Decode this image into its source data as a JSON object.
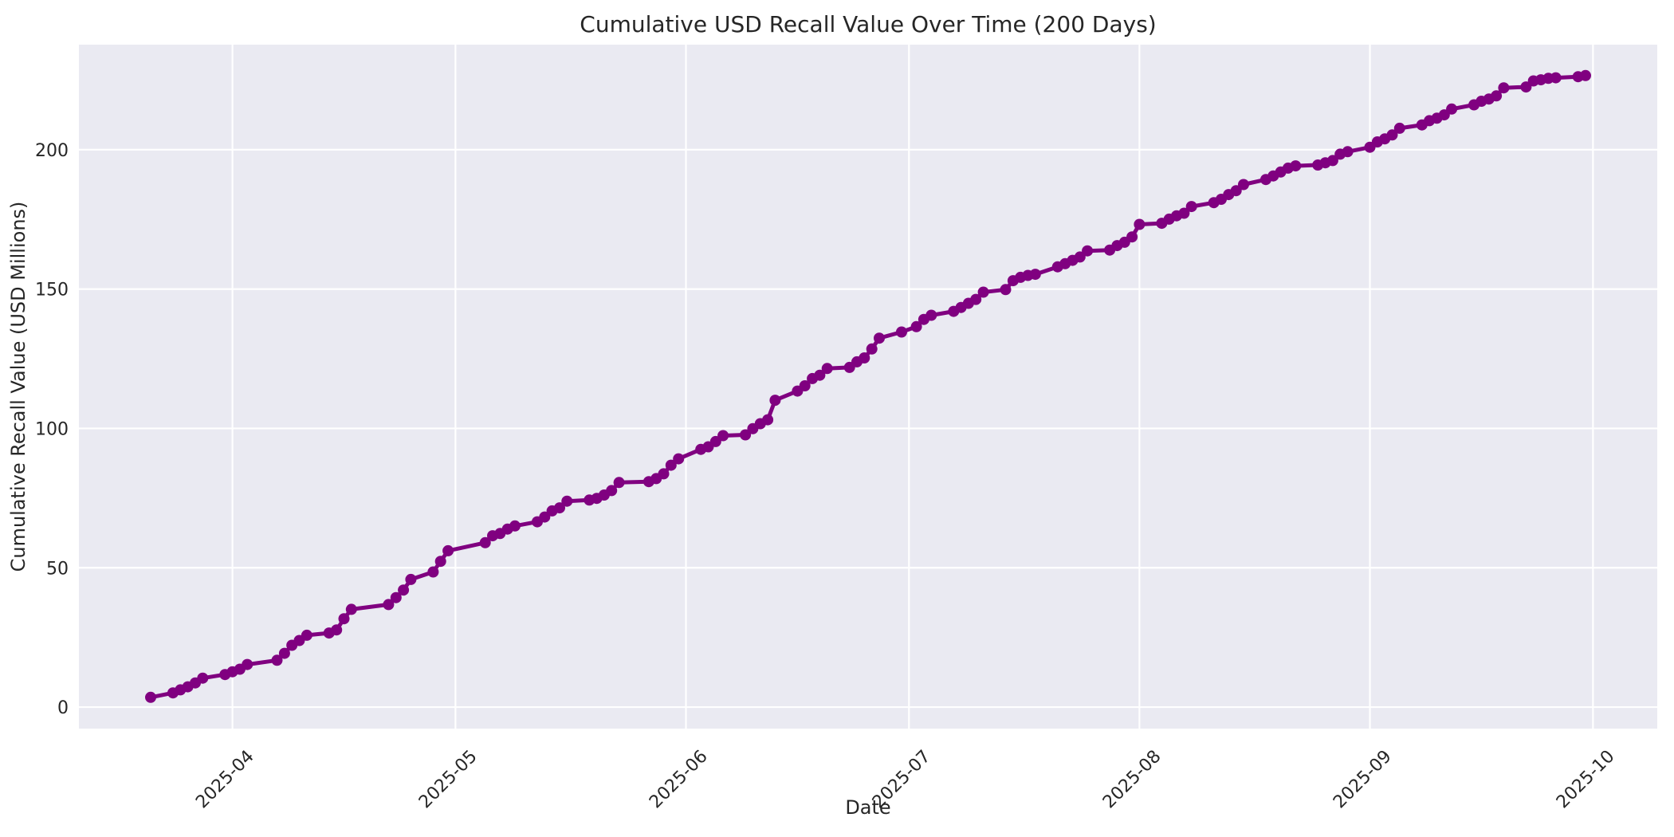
{
  "chart_data": {
    "type": "line",
    "title": "Cumulative USD Recall Value Over Time (200 Days)",
    "xlabel": "Date",
    "ylabel": "Cumulative Recall Value (USD Millions)",
    "num_days_in_title": 200,
    "legend": "none",
    "grid": true,
    "background_color": "#eaeaf2",
    "grid_color": "#ffffff",
    "line_color": "#800080",
    "marker_color": "#800080",
    "text_color": "#262626",
    "ylim": [
      -7.7,
      237.7
    ],
    "xlim": [
      "2025-03-11",
      "2025-10-10"
    ],
    "y_ticks": [
      0,
      50,
      100,
      150,
      200
    ],
    "x_ticks": [
      {
        "label": "2025-04",
        "date": "2025-04-01"
      },
      {
        "label": "2025-05",
        "date": "2025-05-01"
      },
      {
        "label": "2025-06",
        "date": "2025-06-01"
      },
      {
        "label": "2025-07",
        "date": "2025-07-01"
      },
      {
        "label": "2025-08",
        "date": "2025-08-01"
      },
      {
        "label": "2025-09",
        "date": "2025-09-01"
      },
      {
        "label": "2025-10",
        "date": "2025-10-01"
      }
    ],
    "series": [
      {
        "name": "Cumulative Recall Value",
        "points": [
          [
            "2025-03-21",
            3.5
          ],
          [
            "2025-03-24",
            5.1
          ],
          [
            "2025-03-25",
            6.2
          ],
          [
            "2025-03-26",
            7.3
          ],
          [
            "2025-03-27",
            8.7
          ],
          [
            "2025-03-28",
            10.4
          ],
          [
            "2025-03-31",
            11.7
          ],
          [
            "2025-04-01",
            12.7
          ],
          [
            "2025-04-02",
            13.6
          ],
          [
            "2025-04-03",
            15.3
          ],
          [
            "2025-04-07",
            16.8
          ],
          [
            "2025-04-08",
            19.3
          ],
          [
            "2025-04-09",
            22.2
          ],
          [
            "2025-04-10",
            23.9
          ],
          [
            "2025-04-11",
            25.8
          ],
          [
            "2025-04-14",
            26.6
          ],
          [
            "2025-04-15",
            27.7
          ],
          [
            "2025-04-16",
            31.7
          ],
          [
            "2025-04-17",
            35.1
          ],
          [
            "2025-04-22",
            36.8
          ],
          [
            "2025-04-23",
            39.3
          ],
          [
            "2025-04-24",
            42.0
          ],
          [
            "2025-04-25",
            45.8
          ],
          [
            "2025-04-28",
            48.5
          ],
          [
            "2025-04-29",
            52.3
          ],
          [
            "2025-04-30",
            56.1
          ],
          [
            "2025-05-05",
            59.0
          ],
          [
            "2025-05-06",
            61.5
          ],
          [
            "2025-05-07",
            62.3
          ],
          [
            "2025-05-08",
            63.9
          ],
          [
            "2025-05-09",
            65.0
          ],
          [
            "2025-05-12",
            66.5
          ],
          [
            "2025-05-13",
            68.2
          ],
          [
            "2025-05-14",
            70.4
          ],
          [
            "2025-05-15",
            71.5
          ],
          [
            "2025-05-16",
            73.9
          ],
          [
            "2025-05-19",
            74.3
          ],
          [
            "2025-05-20",
            74.9
          ],
          [
            "2025-05-21",
            76.1
          ],
          [
            "2025-05-22",
            77.7
          ],
          [
            "2025-05-23",
            80.6
          ],
          [
            "2025-05-27",
            80.9
          ],
          [
            "2025-05-28",
            82.0
          ],
          [
            "2025-05-29",
            83.7
          ],
          [
            "2025-05-30",
            86.8
          ],
          [
            "2025-05-31",
            89.1
          ],
          [
            "2025-06-03",
            92.5
          ],
          [
            "2025-06-04",
            93.4
          ],
          [
            "2025-06-05",
            95.3
          ],
          [
            "2025-06-06",
            97.4
          ],
          [
            "2025-06-09",
            97.7
          ],
          [
            "2025-06-10",
            99.9
          ],
          [
            "2025-06-11",
            101.7
          ],
          [
            "2025-06-12",
            103.1
          ],
          [
            "2025-06-13",
            110.1
          ],
          [
            "2025-06-16",
            113.4
          ],
          [
            "2025-06-17",
            115.3
          ],
          [
            "2025-06-18",
            117.9
          ],
          [
            "2025-06-19",
            119.1
          ],
          [
            "2025-06-20",
            121.5
          ],
          [
            "2025-06-23",
            121.9
          ],
          [
            "2025-06-24",
            123.9
          ],
          [
            "2025-06-25",
            125.3
          ],
          [
            "2025-06-26",
            128.5
          ],
          [
            "2025-06-27",
            132.4
          ],
          [
            "2025-06-30",
            134.6
          ],
          [
            "2025-07-02",
            136.5
          ],
          [
            "2025-07-03",
            139.1
          ],
          [
            "2025-07-04",
            140.6
          ],
          [
            "2025-07-07",
            142.0
          ],
          [
            "2025-07-08",
            143.4
          ],
          [
            "2025-07-09",
            144.9
          ],
          [
            "2025-07-10",
            146.3
          ],
          [
            "2025-07-11",
            148.9
          ],
          [
            "2025-07-14",
            149.8
          ],
          [
            "2025-07-15",
            153.0
          ],
          [
            "2025-07-16",
            154.2
          ],
          [
            "2025-07-17",
            154.9
          ],
          [
            "2025-07-18",
            155.3
          ],
          [
            "2025-07-21",
            158.0
          ],
          [
            "2025-07-22",
            159.1
          ],
          [
            "2025-07-23",
            160.3
          ],
          [
            "2025-07-24",
            161.5
          ],
          [
            "2025-07-25",
            163.7
          ],
          [
            "2025-07-28",
            164.0
          ],
          [
            "2025-07-29",
            165.6
          ],
          [
            "2025-07-30",
            166.8
          ],
          [
            "2025-07-31",
            168.7
          ],
          [
            "2025-08-01",
            173.2
          ],
          [
            "2025-08-04",
            173.6
          ],
          [
            "2025-08-05",
            175.1
          ],
          [
            "2025-08-06",
            176.3
          ],
          [
            "2025-08-07",
            177.2
          ],
          [
            "2025-08-08",
            179.6
          ],
          [
            "2025-08-11",
            181.0
          ],
          [
            "2025-08-12",
            182.2
          ],
          [
            "2025-08-13",
            183.9
          ],
          [
            "2025-08-14",
            185.3
          ],
          [
            "2025-08-15",
            187.5
          ],
          [
            "2025-08-18",
            189.3
          ],
          [
            "2025-08-19",
            190.6
          ],
          [
            "2025-08-20",
            192.0
          ],
          [
            "2025-08-21",
            193.4
          ],
          [
            "2025-08-22",
            194.2
          ],
          [
            "2025-08-25",
            194.5
          ],
          [
            "2025-08-26",
            195.3
          ],
          [
            "2025-08-27",
            196.1
          ],
          [
            "2025-08-28",
            198.4
          ],
          [
            "2025-08-29",
            199.3
          ],
          [
            "2025-09-01",
            200.9
          ],
          [
            "2025-09-02",
            202.8
          ],
          [
            "2025-09-03",
            203.9
          ],
          [
            "2025-09-04",
            205.3
          ],
          [
            "2025-09-05",
            207.7
          ],
          [
            "2025-09-08",
            208.9
          ],
          [
            "2025-09-09",
            210.4
          ],
          [
            "2025-09-10",
            211.3
          ],
          [
            "2025-09-11",
            212.5
          ],
          [
            "2025-09-12",
            214.6
          ],
          [
            "2025-09-15",
            216.1
          ],
          [
            "2025-09-16",
            217.4
          ],
          [
            "2025-09-17",
            218.2
          ],
          [
            "2025-09-18",
            219.3
          ],
          [
            "2025-09-19",
            222.2
          ],
          [
            "2025-09-22",
            222.5
          ],
          [
            "2025-09-23",
            224.7
          ],
          [
            "2025-09-24",
            225.1
          ],
          [
            "2025-09-25",
            225.6
          ],
          [
            "2025-09-26",
            225.8
          ],
          [
            "2025-09-29",
            226.2
          ],
          [
            "2025-09-30",
            226.6
          ]
        ]
      }
    ]
  }
}
